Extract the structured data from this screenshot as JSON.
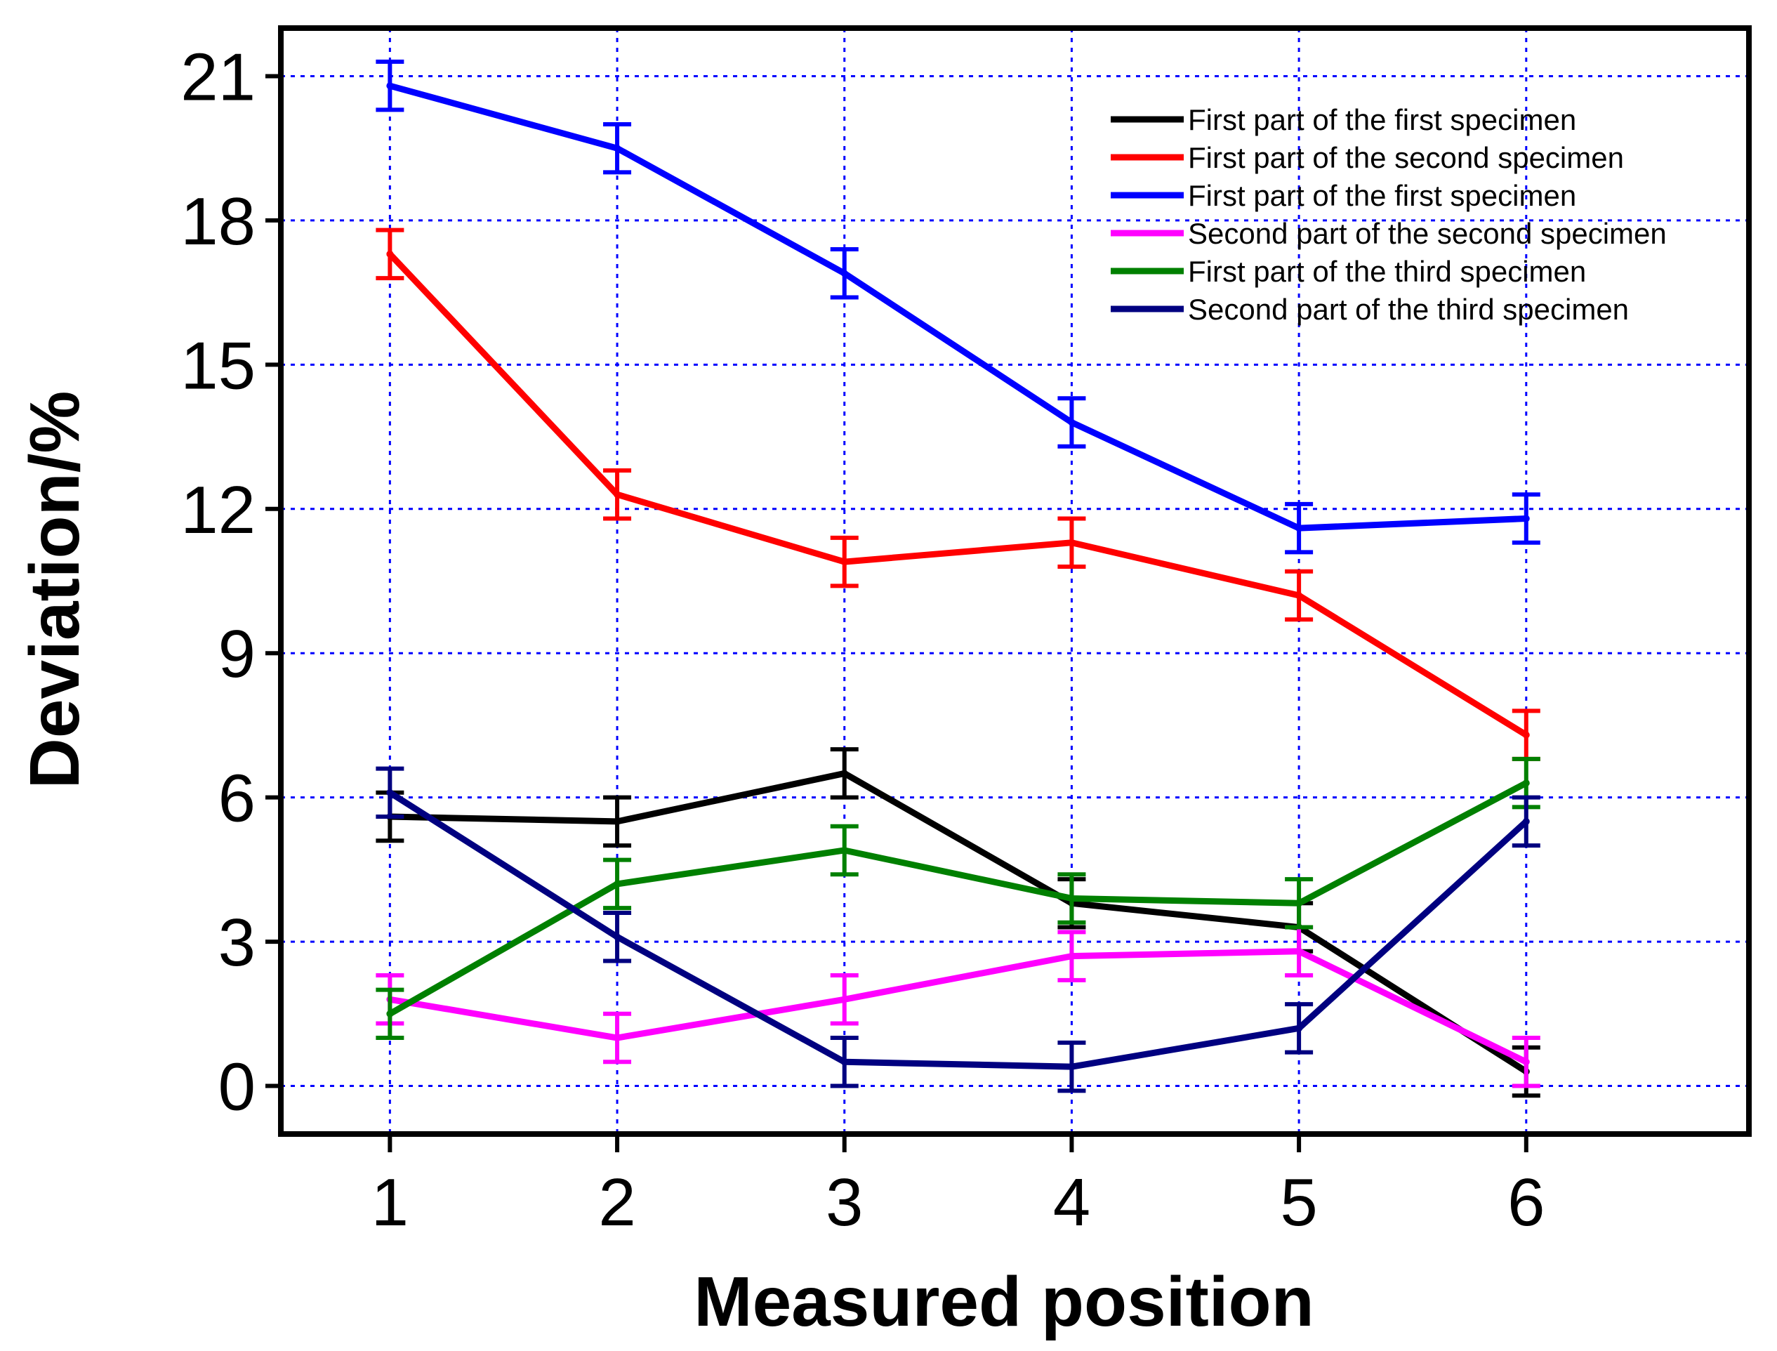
{
  "chart_data": {
    "type": "line",
    "title": "",
    "xlabel": "Measured position",
    "ylabel": "Deviation/%",
    "x": [
      1,
      2,
      3,
      4,
      5,
      6
    ],
    "xlim": [
      0.52,
      6.98
    ],
    "ylim": [
      -1.0,
      22.0
    ],
    "xticks": [
      1,
      2,
      3,
      4,
      5,
      6
    ],
    "yticks": [
      0,
      3,
      6,
      9,
      12,
      15,
      18,
      21
    ],
    "grid": true,
    "legend_position": "top-right",
    "error_bar": 0.5,
    "series": [
      {
        "name": "First part of the first specimen",
        "color": "#000000",
        "values": [
          5.6,
          5.5,
          6.5,
          3.8,
          3.3,
          0.3
        ]
      },
      {
        "name": "First part of the second specimen",
        "color": "#ff0000",
        "values": [
          17.3,
          12.3,
          10.9,
          11.3,
          10.2,
          7.3
        ]
      },
      {
        "name": "First part of the first specimen",
        "color": "#0000ff",
        "values": [
          20.8,
          19.5,
          16.9,
          13.8,
          11.6,
          11.8
        ]
      },
      {
        "name": "Second part of the second specimen",
        "color": "#ff00ff",
        "values": [
          1.8,
          1.0,
          1.8,
          2.7,
          2.8,
          0.5
        ]
      },
      {
        "name": "First part of the third specimen",
        "color": "#008000",
        "values": [
          1.5,
          4.2,
          4.9,
          3.9,
          3.8,
          6.3
        ]
      },
      {
        "name": "Second part of the third specimen",
        "color": "#000080",
        "values": [
          6.1,
          3.1,
          0.5,
          0.4,
          1.2,
          5.5
        ]
      }
    ]
  }
}
